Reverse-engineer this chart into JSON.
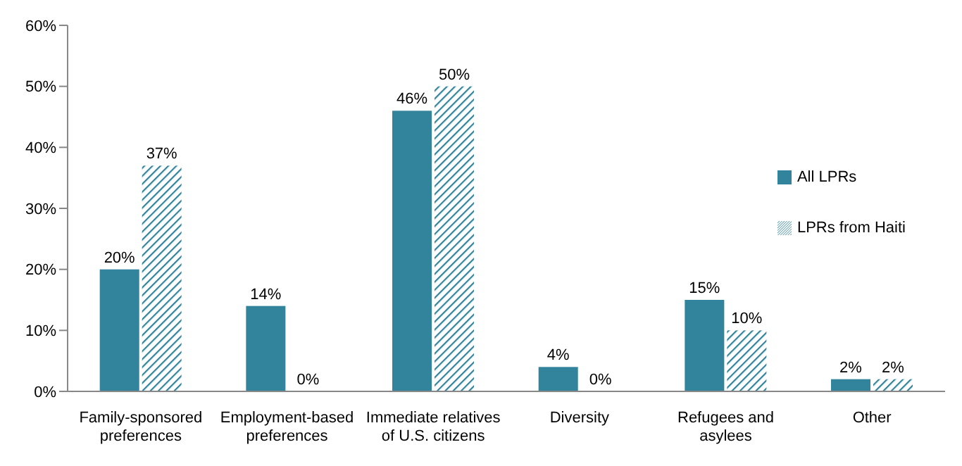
{
  "chart_data": {
    "type": "bar",
    "categories": [
      "Family-sponsored preferences",
      "Employment-based preferences",
      "Immediate relatives of U.S. citizens",
      "Diversity",
      "Refugees and asylees",
      "Other"
    ],
    "series": [
      {
        "name": "All LPRs",
        "color": "#31849b",
        "values": [
          20,
          14,
          46,
          4,
          15,
          2
        ],
        "value_labels": [
          "20%",
          "14%",
          "46%",
          "4%",
          "15%",
          "2%"
        ]
      },
      {
        "name": "LPRs from Haiti",
        "color": "#31849b",
        "values": [
          37,
          0,
          50,
          0,
          10,
          2
        ],
        "value_labels": [
          "37%",
          "0%",
          "50%",
          "0%",
          "10%",
          "2%"
        ]
      }
    ],
    "ylim": [
      0,
      60
    ],
    "yticks": [
      {
        "value": 0,
        "label": "0%"
      },
      {
        "value": 10,
        "label": "10%"
      },
      {
        "value": 20,
        "label": "20%"
      },
      {
        "value": 30,
        "label": "30%"
      },
      {
        "value": 40,
        "label": "40%"
      },
      {
        "value": 50,
        "label": "50%"
      },
      {
        "value": 60,
        "label": "60%"
      }
    ],
    "grid": false,
    "legend": "right"
  }
}
